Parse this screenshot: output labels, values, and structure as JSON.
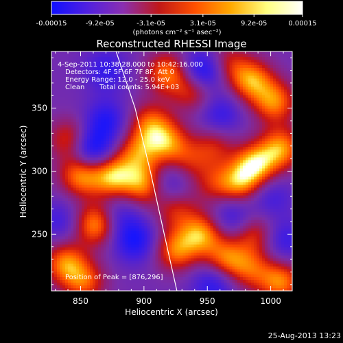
{
  "colorbar": {
    "ticks": [
      "-0.00015",
      "-9.2e-05",
      "-3.1e-05",
      "3.1e-05",
      "9.2e-05",
      "0.00015"
    ],
    "tick_values": [
      -0.00015,
      -9.2e-05,
      -3.1e-05,
      3.1e-05,
      9.2e-05,
      0.00015
    ],
    "range": [
      -0.00015,
      0.00015
    ],
    "unit_label": "(photons cm⁻² s⁻¹ asec⁻²)",
    "stops": [
      "#1010ff",
      "#5020e0",
      "#8a2fb0",
      "#c01818",
      "#ff5000",
      "#ffaa00",
      "#ffff80",
      "#ffffff"
    ]
  },
  "annotations": {
    "time_range": "4-Sep-2011 10:38:28.000 to 10:42:16.000",
    "detectors": "Detectors: 4F 5F 6F 7F 8F, Att 0",
    "energy_range": "Energy Range: 12.0 - 25.0 keV",
    "clean_method": "Clean",
    "total_counts": "Total counts: 5.94E+03",
    "peak_position": "Position of Peak = [876,296]"
  },
  "footer": {
    "timestamp": "25-Aug-2013 13:23"
  },
  "chart_data": {
    "type": "heatmap",
    "title": "Reconstructed RHESSI Image",
    "xlabel": "Heliocentric X (arcsec)",
    "ylabel": "Heliocentric Y (arcsec)",
    "xlim": [
      827,
      1017
    ],
    "ylim": [
      205,
      395
    ],
    "x_ticks": [
      850,
      900,
      950,
      1000
    ],
    "y_ticks": [
      250,
      300,
      350
    ],
    "x_tick_labels": [
      "850",
      "900",
      "950",
      "1000"
    ],
    "y_tick_labels": [
      "250",
      "300",
      "350"
    ],
    "grid": false,
    "limb": [
      [
        878,
        395
      ],
      [
        893,
        350
      ],
      [
        905,
        300
      ],
      [
        916,
        250
      ],
      [
        926,
        205
      ]
    ],
    "blobs": [
      {
        "x": 862,
        "y": 258,
        "v": 0.95
      },
      {
        "x": 850,
        "y": 297,
        "v": 0.9
      },
      {
        "x": 875,
        "y": 296,
        "v": 1.0
      },
      {
        "x": 900,
        "y": 290,
        "v": 0.9
      },
      {
        "x": 895,
        "y": 315,
        "v": 0.7
      },
      {
        "x": 918,
        "y": 323,
        "v": 0.8
      },
      {
        "x": 905,
        "y": 338,
        "v": 0.7
      },
      {
        "x": 918,
        "y": 378,
        "v": 0.8
      },
      {
        "x": 940,
        "y": 365,
        "v": 0.75
      },
      {
        "x": 965,
        "y": 385,
        "v": 0.55
      },
      {
        "x": 985,
        "y": 372,
        "v": 0.9
      },
      {
        "x": 1003,
        "y": 355,
        "v": 0.85
      },
      {
        "x": 988,
        "y": 305,
        "v": 1.0
      },
      {
        "x": 1008,
        "y": 318,
        "v": 0.9
      },
      {
        "x": 975,
        "y": 290,
        "v": 0.8
      },
      {
        "x": 955,
        "y": 290,
        "v": 0.45
      },
      {
        "x": 945,
        "y": 250,
        "v": 0.9
      },
      {
        "x": 925,
        "y": 237,
        "v": 0.8
      },
      {
        "x": 965,
        "y": 230,
        "v": 0.8
      },
      {
        "x": 988,
        "y": 250,
        "v": 0.6
      },
      {
        "x": 1008,
        "y": 212,
        "v": 0.85
      },
      {
        "x": 985,
        "y": 222,
        "v": 0.6
      },
      {
        "x": 838,
        "y": 227,
        "v": 0.85
      },
      {
        "x": 853,
        "y": 212,
        "v": 0.7
      },
      {
        "x": 842,
        "y": 325,
        "v": 0.7
      },
      {
        "x": 925,
        "y": 270,
        "v": 0.55
      },
      {
        "x": 935,
        "y": 308,
        "v": 0.45
      },
      {
        "x": 955,
        "y": 320,
        "v": 0.5
      },
      {
        "x": 870,
        "y": 340,
        "v": -0.6
      },
      {
        "x": 858,
        "y": 317,
        "v": -0.9
      },
      {
        "x": 947,
        "y": 378,
        "v": -1.0
      },
      {
        "x": 893,
        "y": 245,
        "v": -0.7
      },
      {
        "x": 920,
        "y": 290,
        "v": -0.5
      },
      {
        "x": 970,
        "y": 265,
        "v": -0.5
      },
      {
        "x": 1000,
        "y": 280,
        "v": -0.4
      },
      {
        "x": 870,
        "y": 380,
        "v": -0.5
      },
      {
        "x": 955,
        "y": 210,
        "v": -0.6
      },
      {
        "x": 880,
        "y": 265,
        "v": -0.4
      },
      {
        "x": 1010,
        "y": 245,
        "v": -0.5
      },
      {
        "x": 960,
        "y": 345,
        "v": -0.5
      },
      {
        "x": 833,
        "y": 260,
        "v": -0.4
      }
    ]
  }
}
